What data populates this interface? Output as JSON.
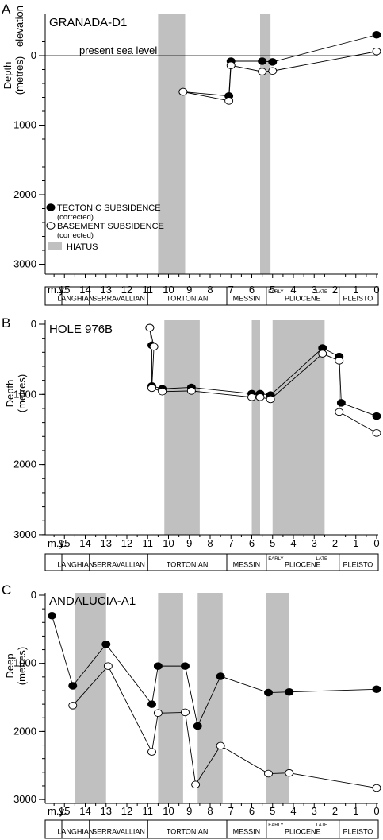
{
  "stages": [
    {
      "label": "LANGHIAN",
      "from": 16,
      "to": 13.8
    },
    {
      "label": "SERRAVALLIAN",
      "from": 13.8,
      "to": 11
    },
    {
      "label": "TORTONIAN",
      "from": 11,
      "to": 7.2
    },
    {
      "label": "MESSIN",
      "from": 7.2,
      "to": 5.3
    },
    {
      "label": "PLIOCENE",
      "from": 5.3,
      "to": 1.8,
      "early_label": "EARLY",
      "late_label": "LATE"
    },
    {
      "label": "PLEISTO",
      "from": 1.8,
      "to": 0
    }
  ],
  "xaxis_label": "m.y.",
  "x_ticks": [
    15,
    14,
    13,
    12,
    11,
    10,
    9,
    8,
    7,
    6,
    5,
    4,
    3,
    2,
    1,
    0
  ],
  "colors": {
    "hiatus": "#c0c0c0",
    "tectonic": "#000000",
    "basement": "#ffffff"
  },
  "chart_data": [
    {
      "panel_label": "A",
      "title": "GRANADA-D1",
      "type": "scatter",
      "ylabel": "Depth (metres)",
      "ylabel_upper": "elevation",
      "y_ticks": [
        0,
        1000,
        2000,
        3000
      ],
      "ylim": [
        3000,
        -300
      ],
      "sea_level_label": "present sea level",
      "hiatus": [
        [
          10.5,
          9.2
        ],
        [
          5.6,
          5.1
        ]
      ],
      "legend": {
        "tectonic": "TECTONIC SUBSIDENCE",
        "tectonic_sub": "(corrected)",
        "basement": "BASEMENT SUBSIDENCE",
        "basement_sub": "(corrected)",
        "hiatus": "HIATUS"
      },
      "series": [
        {
          "name": "TECTONIC SUBSIDENCE (corrected)",
          "x": [
            9.3,
            7.1,
            7.0,
            5.5,
            5.0,
            0
          ],
          "y": [
            520,
            580,
            80,
            80,
            90,
            -300
          ]
        },
        {
          "name": "BASEMENT SUBSIDENCE (corrected)",
          "x": [
            9.3,
            7.1,
            7.0,
            5.5,
            5.0,
            0
          ],
          "y": [
            520,
            650,
            140,
            230,
            220,
            -60
          ]
        }
      ]
    },
    {
      "panel_label": "B",
      "title": "HOLE 976B",
      "type": "scatter",
      "ylabel": "Depth (metres)",
      "y_ticks": [
        0,
        1000,
        2000,
        3000
      ],
      "ylim": [
        3000,
        0
      ],
      "hiatus": [
        [
          10.2,
          8.5
        ],
        [
          6.0,
          5.6
        ],
        [
          5.0,
          2.5
        ]
      ],
      "series": [
        {
          "name": "TECTONIC SUBSIDENCE (corrected)",
          "x": [
            10.9,
            10.8,
            10.8,
            10.3,
            8.9,
            6.0,
            5.6,
            5.1,
            2.6,
            1.8,
            1.7,
            0
          ],
          "y": [
            50,
            300,
            880,
            920,
            900,
            990,
            990,
            1010,
            340,
            460,
            1120,
            1310
          ]
        },
        {
          "name": "BASEMENT SUBSIDENCE (corrected)",
          "x": [
            10.9,
            10.7,
            10.8,
            10.3,
            8.9,
            6.0,
            5.6,
            5.1,
            2.6,
            1.8,
            1.8,
            0
          ],
          "y": [
            50,
            320,
            910,
            960,
            950,
            1040,
            1040,
            1070,
            420,
            520,
            1250,
            1550
          ]
        }
      ]
    },
    {
      "panel_label": "C",
      "title": "ANDALUCIA-A1",
      "type": "scatter",
      "ylabel": "Deep (metres)",
      "y_ticks": [
        0,
        1000,
        2000,
        3000
      ],
      "ylim": [
        3000,
        0
      ],
      "hiatus": [
        [
          14.5,
          13.0
        ],
        [
          10.5,
          9.3
        ],
        [
          8.6,
          7.4
        ],
        [
          5.3,
          4.2
        ]
      ],
      "series": [
        {
          "name": "TECTONIC SUBSIDENCE (corrected)",
          "x": [
            15.6,
            14.6,
            13.0,
            10.8,
            10.5,
            9.2,
            8.6,
            7.5,
            5.2,
            4.2,
            0
          ],
          "y": [
            300,
            1330,
            720,
            1600,
            1040,
            1040,
            1920,
            1190,
            1430,
            1420,
            1380
          ]
        },
        {
          "name": "BASEMENT SUBSIDENCE (corrected)",
          "x": [
            14.6,
            12.9,
            10.8,
            10.5,
            9.2,
            8.7,
            7.5,
            5.2,
            4.2,
            0
          ],
          "y": [
            1620,
            1040,
            2300,
            1730,
            1720,
            2780,
            2210,
            2620,
            2610,
            2830
          ]
        }
      ]
    }
  ]
}
